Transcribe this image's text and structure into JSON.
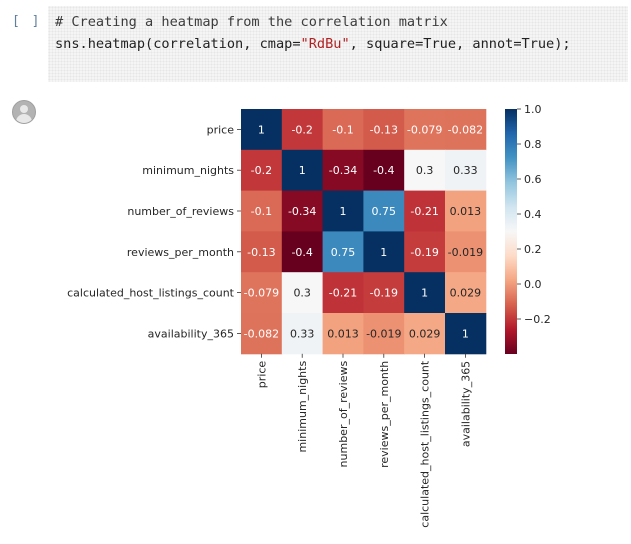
{
  "cell": {
    "prompt": "[ ]",
    "code_lines": [
      "# Creating a heatmap from the correlation matrix",
      "sns.heatmap(correlation, cmap=\"RdBu\", square=True, annot=True);"
    ]
  },
  "output": {
    "icon": "output-avatar-icon"
  },
  "chart_data": {
    "type": "heatmap",
    "cmap": "RdBu",
    "labels": [
      "price",
      "minimum_nights",
      "number_of_reviews",
      "reviews_per_month",
      "calculated_host_listings_count",
      "availability_365"
    ],
    "values": [
      [
        1,
        -0.2,
        -0.1,
        -0.13,
        -0.079,
        -0.082
      ],
      [
        -0.2,
        1,
        -0.34,
        -0.4,
        0.3,
        0.33
      ],
      [
        -0.1,
        -0.34,
        1,
        0.75,
        -0.21,
        0.013
      ],
      [
        -0.13,
        -0.4,
        0.75,
        1,
        -0.19,
        -0.019
      ],
      [
        -0.079,
        0.3,
        -0.21,
        -0.19,
        1,
        0.029
      ],
      [
        -0.082,
        0.33,
        0.013,
        -0.019,
        0.029,
        1
      ]
    ],
    "annotations": [
      [
        "1",
        "-0.2",
        "-0.1",
        "-0.13",
        "-0.079",
        "-0.082"
      ],
      [
        "-0.2",
        "1",
        "-0.34",
        "-0.4",
        "0.3",
        "0.33"
      ],
      [
        "-0.1",
        "-0.34",
        "1",
        "0.75",
        "-0.21",
        "0.013"
      ],
      [
        "-0.13",
        "-0.4",
        "0.75",
        "1",
        "-0.19",
        "-0.019"
      ],
      [
        "-0.079",
        "0.3",
        "-0.21",
        "-0.19",
        "1",
        "0.029"
      ],
      [
        "-0.082",
        "0.33",
        "0.013",
        "-0.019",
        "0.029",
        "1"
      ]
    ],
    "vmin": -0.4,
    "vmax": 1,
    "colorbar_ticks": [
      1.0,
      0.8,
      0.6,
      0.4,
      0.2,
      0.0,
      -0.2
    ],
    "colorbar_tick_labels": [
      "1.0",
      "0.8",
      "0.6",
      "0.4",
      "0.2",
      "0.0",
      "−0.2"
    ],
    "square": true,
    "annot": true
  }
}
